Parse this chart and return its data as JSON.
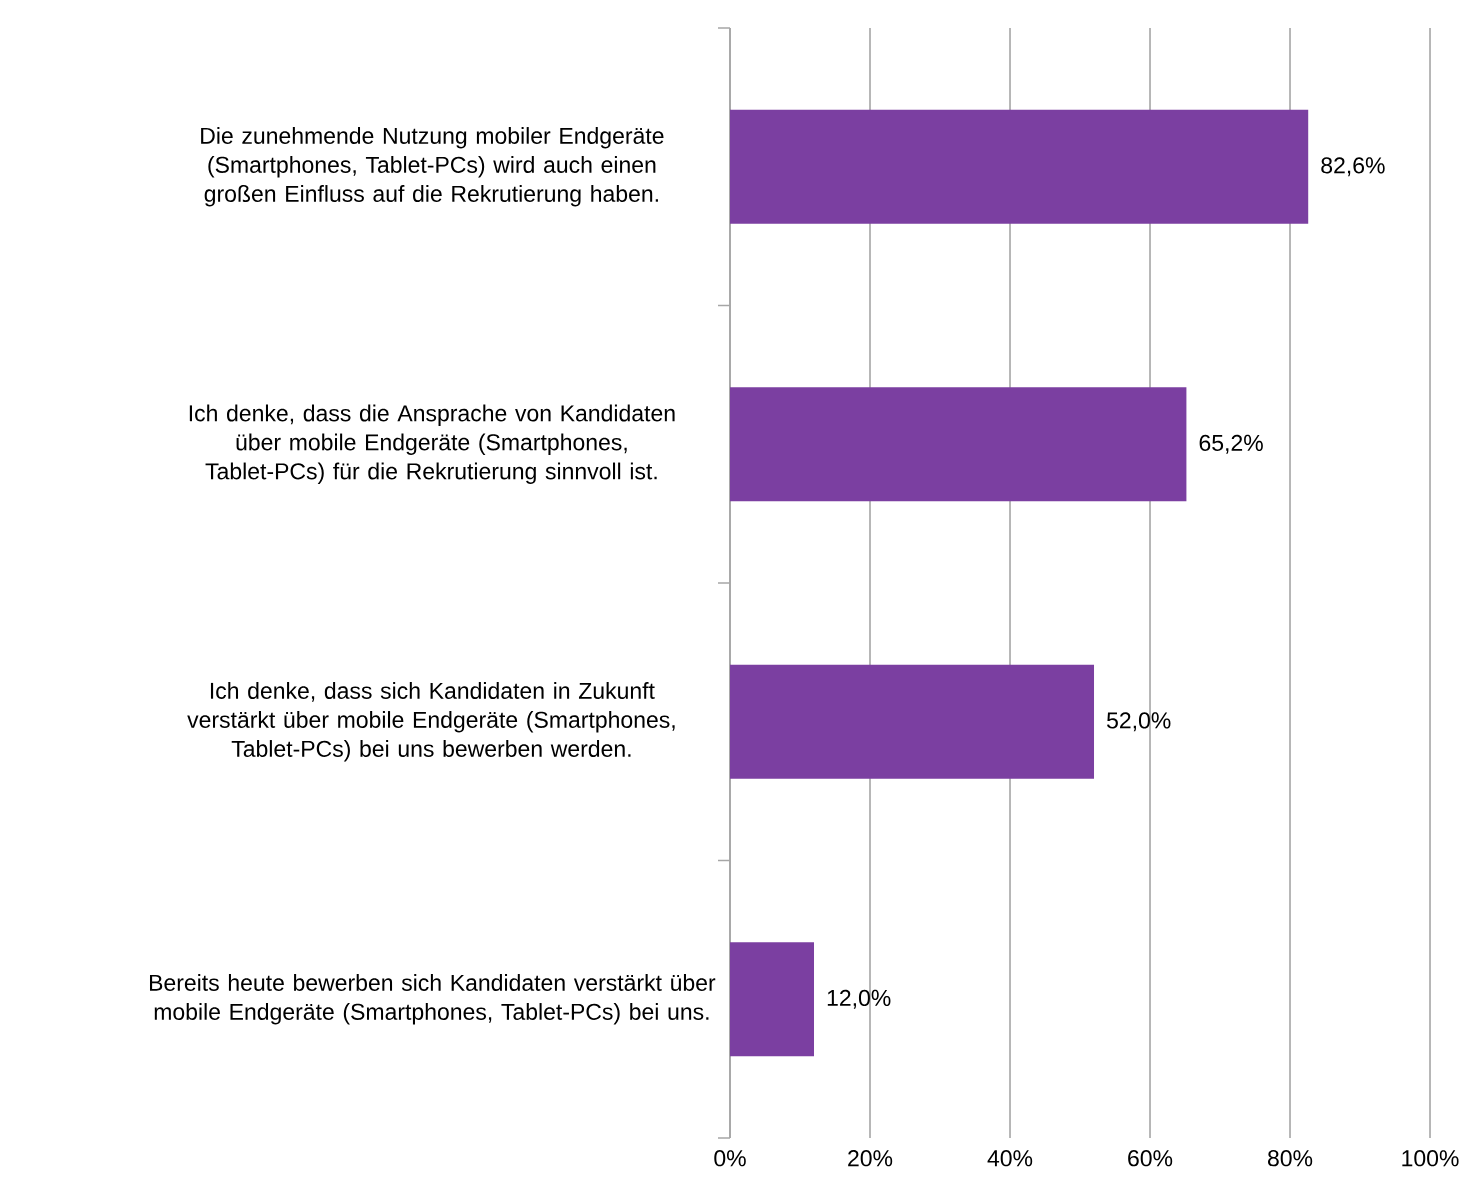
{
  "chart_data": {
    "type": "bar",
    "orientation": "horizontal",
    "categories": [
      "Die zunehmende Nutzung mobiler Endgeräte (Smartphones, Tablet-PCs) wird auch einen großen Einfluss auf die Rekrutierung haben.",
      "Ich denke, dass die Ansprache von Kandidaten über mobile Endgeräte (Smartphones, Tablet-PCs) für die Rekrutierung sinnvoll ist.",
      "Ich denke, dass sich Kandidaten in Zukunft verstärkt über mobile Endgeräte (Smartphones, Tablet-PCs) bei uns bewerben werden.",
      "Bereits heute bewerben sich Kandidaten verstärkt über mobile Endgeräte (Smartphones, Tablet-PCs) bei uns."
    ],
    "values": [
      82.6,
      65.2,
      52.0,
      12.0
    ],
    "value_labels": [
      "82,6%",
      "65,2%",
      "52,0%",
      "12,0%"
    ],
    "color": "#7b3fa1",
    "xlim": [
      0,
      100
    ],
    "xticks": [
      {
        "value": 0,
        "label": "0%"
      },
      {
        "value": 20,
        "label": "20%"
      },
      {
        "value": 40,
        "label": "40%"
      },
      {
        "value": 60,
        "label": "60%"
      },
      {
        "value": 80,
        "label": "80%"
      },
      {
        "value": 100,
        "label": "100%"
      }
    ],
    "grid": "x"
  }
}
